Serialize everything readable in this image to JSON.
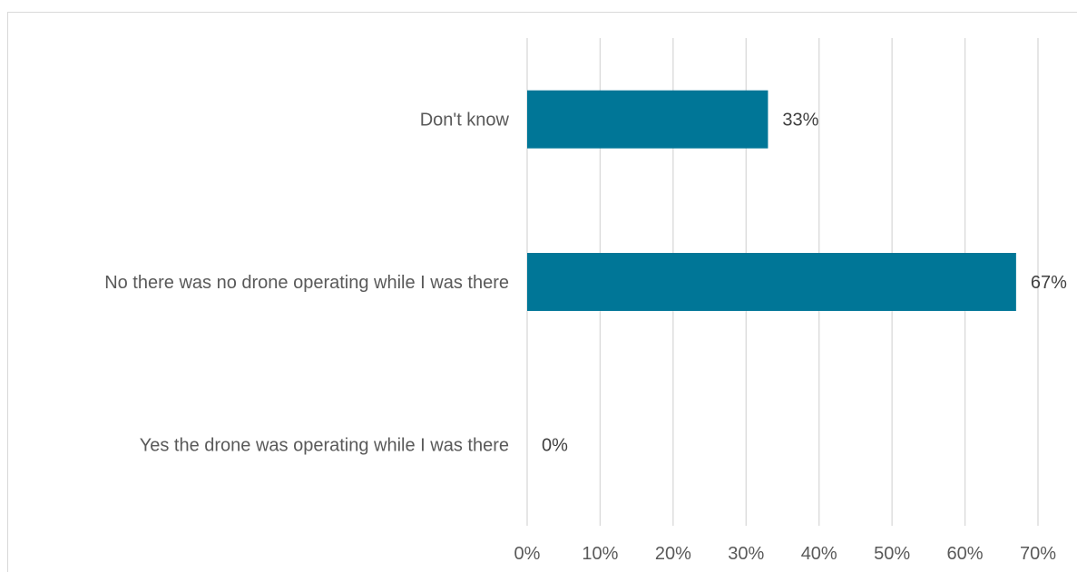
{
  "chart_data": {
    "type": "bar",
    "orientation": "horizontal",
    "title": "",
    "xlabel": "",
    "ylabel": "",
    "categories": [
      "Don't know",
      "No there was no drone operating while I was there",
      "Yes the drone was operating while I was there"
    ],
    "values": [
      33,
      67,
      0
    ],
    "data_labels": [
      "33%",
      "67%",
      "0%"
    ],
    "xlim": [
      0,
      70
    ],
    "ticks": [
      0,
      10,
      20,
      30,
      40,
      50,
      60,
      70
    ],
    "tick_labels": [
      "0%",
      "10%",
      "20%",
      "30%",
      "40%",
      "50%",
      "60%",
      "70%"
    ],
    "bar_color": "#007697",
    "grid": true,
    "legend": false
  }
}
